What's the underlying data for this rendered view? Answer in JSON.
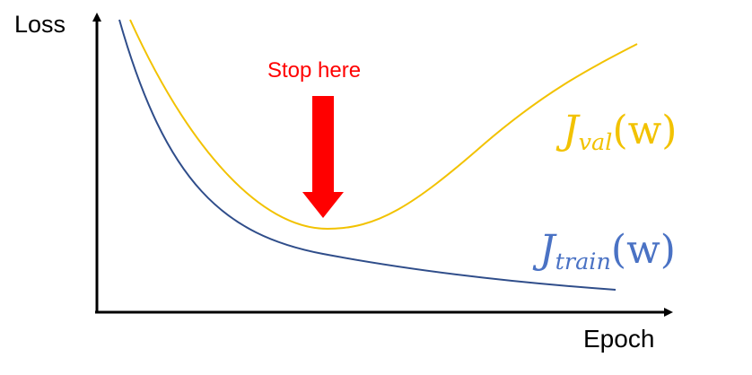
{
  "axes": {
    "y_label": "Loss",
    "x_label": "Epoch"
  },
  "annotation": {
    "text": "Stop here",
    "color": "#ff0000"
  },
  "curves": [
    {
      "id": "val",
      "label_main": "J",
      "label_sub": "val",
      "label_arg": "(w)",
      "color": "#f2c200"
    },
    {
      "id": "train",
      "label_main": "J",
      "label_sub": "train",
      "label_arg": "(w)",
      "color": "#4a72c4"
    }
  ],
  "colors": {
    "axis": "#000000"
  }
}
